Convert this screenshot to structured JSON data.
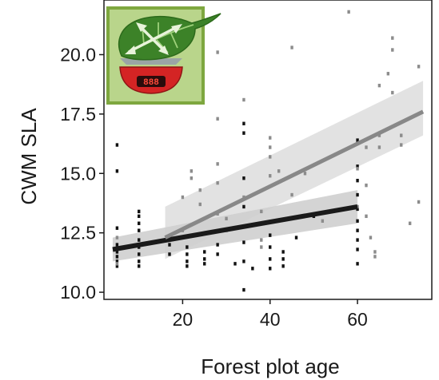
{
  "chart_data": {
    "type": "scatter",
    "xlabel": "Forest plot age",
    "ylabel": "CWM SLA",
    "xlim": [
      2,
      77
    ],
    "ylim": [
      9.7,
      22.3
    ],
    "x_ticks": [
      20,
      40,
      60
    ],
    "x_tick_labels": [
      "20",
      "40",
      "60"
    ],
    "y_ticks": [
      10.0,
      12.5,
      15.0,
      17.5,
      20.0
    ],
    "y_tick_labels": [
      "10.0",
      "12.5",
      "15.0",
      "17.5",
      "20.0"
    ],
    "grid": false,
    "series": [
      {
        "color": "#111111",
        "marker": "dot",
        "points": [
          [
            5,
            16.2
          ],
          [
            5,
            15.1
          ],
          [
            5,
            12.7
          ],
          [
            5,
            12.0
          ],
          [
            5,
            11.7
          ],
          [
            5,
            11.5
          ],
          [
            5,
            11.3
          ],
          [
            5,
            11.1
          ],
          [
            10,
            13.4
          ],
          [
            10,
            13.2
          ],
          [
            10,
            12.9
          ],
          [
            10,
            12.6
          ],
          [
            10,
            12.2
          ],
          [
            10,
            11.9
          ],
          [
            10,
            11.6
          ],
          [
            10,
            11.3
          ],
          [
            10,
            11.1
          ],
          [
            17,
            12.0
          ],
          [
            17,
            11.6
          ],
          [
            21,
            11.3
          ],
          [
            21,
            11.1
          ],
          [
            21,
            11.6
          ],
          [
            21,
            11.9
          ],
          [
            25,
            11.7
          ],
          [
            25,
            11.4
          ],
          [
            25,
            11.2
          ],
          [
            28,
            12.0
          ],
          [
            28,
            11.6
          ],
          [
            32,
            11.2
          ],
          [
            34,
            17.1
          ],
          [
            34,
            16.7
          ],
          [
            34,
            14.8
          ],
          [
            34,
            13.6
          ],
          [
            34,
            12.1
          ],
          [
            34,
            11.3
          ],
          [
            34,
            10.1
          ],
          [
            36,
            11.0
          ],
          [
            40,
            12.4
          ],
          [
            40,
            11.9
          ],
          [
            40,
            11.4
          ],
          [
            40,
            11.0
          ],
          [
            43,
            11.7
          ],
          [
            43,
            11.4
          ],
          [
            43,
            11.1
          ],
          [
            46,
            12.3
          ],
          [
            50,
            13.2
          ],
          [
            60,
            16.4
          ],
          [
            60,
            15.3
          ],
          [
            60,
            14.7
          ],
          [
            60,
            14.1
          ],
          [
            60,
            13.5
          ],
          [
            60,
            13.0
          ],
          [
            60,
            12.6
          ],
          [
            60,
            12.2
          ],
          [
            60,
            11.8
          ],
          [
            60,
            11.2
          ]
        ]
      },
      {
        "color": "#8c8c8c",
        "marker": "dot",
        "points": [
          [
            5,
            12.3
          ],
          [
            5,
            11.2
          ],
          [
            20,
            14.0
          ],
          [
            20,
            12.6
          ],
          [
            22,
            15.1
          ],
          [
            22,
            14.8
          ],
          [
            24,
            14.3
          ],
          [
            24,
            13.7
          ],
          [
            28,
            20.1
          ],
          [
            28,
            17.3
          ],
          [
            28,
            15.4
          ],
          [
            28,
            14.6
          ],
          [
            28,
            13.3
          ],
          [
            30,
            13.1
          ],
          [
            30,
            12.6
          ],
          [
            34,
            18.1
          ],
          [
            34,
            14.0
          ],
          [
            38,
            13.4
          ],
          [
            38,
            12.2
          ],
          [
            38,
            11.9
          ],
          [
            40,
            16.5
          ],
          [
            40,
            16.1
          ],
          [
            40,
            15.7
          ],
          [
            40,
            14.9
          ],
          [
            42,
            15.1
          ],
          [
            45,
            20.3
          ],
          [
            45,
            14.1
          ],
          [
            48,
            15.0
          ],
          [
            52,
            13.0
          ],
          [
            58,
            21.8
          ],
          [
            60,
            15.2
          ],
          [
            60,
            13.6
          ],
          [
            62,
            16.1
          ],
          [
            62,
            14.5
          ],
          [
            62,
            13.2
          ],
          [
            63,
            12.3
          ],
          [
            64,
            11.5
          ],
          [
            64,
            11.7
          ],
          [
            65,
            18.7
          ],
          [
            65,
            16.6
          ],
          [
            65,
            16.1
          ],
          [
            67,
            19.2
          ],
          [
            68,
            20.7
          ],
          [
            68,
            20.2
          ],
          [
            68,
            18.4
          ],
          [
            70,
            16.2
          ],
          [
            70,
            16.6
          ],
          [
            72,
            12.9
          ],
          [
            74,
            19.5
          ],
          [
            74,
            13.8
          ]
        ]
      }
    ],
    "fits": [
      {
        "color": "#1a1a1a",
        "band_color": "#b8b8b8",
        "x": [
          4,
          60
        ],
        "y": [
          11.8,
          13.6
        ],
        "ci_lower": [
          11.3,
          12.9
        ],
        "ci_upper": [
          12.3,
          14.3
        ]
      },
      {
        "color": "#888888",
        "band_color": "#cfcfcf",
        "x": [
          16,
          75
        ],
        "y": [
          12.3,
          17.6
        ],
        "ci_lower": [
          11.4,
          16.6
        ],
        "ci_upper": [
          13.6,
          18.9
        ]
      }
    ]
  },
  "inset_icon": {
    "name": "leaf-on-scale-icon",
    "scale_display": "888",
    "colors": {
      "frame": "#7ea73f",
      "background": "#b9d58b",
      "leaf": "#3c8228",
      "scale": "#d42424"
    }
  }
}
